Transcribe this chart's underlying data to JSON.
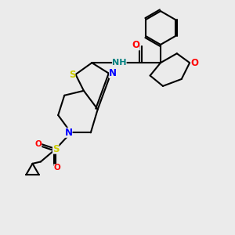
{
  "background_color": "#ebebeb",
  "bond_color": "#000000",
  "bond_width": 1.5,
  "atom_colors": {
    "N": "#0000ff",
    "O": "#ff0000",
    "S": "#cccc00",
    "NH": "#008080",
    "C": "#000000"
  },
  "font_size": 8.5,
  "figsize": [
    3.0,
    3.0
  ],
  "dpi": 100
}
